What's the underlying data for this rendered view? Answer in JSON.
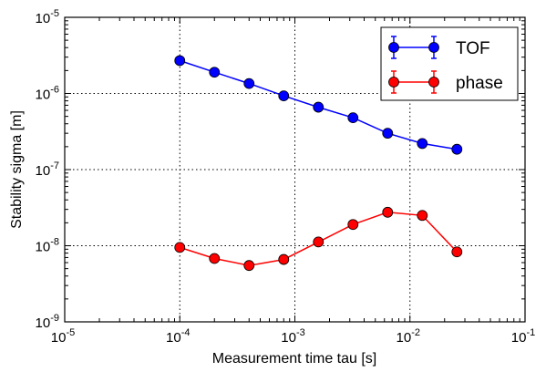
{
  "chart_data": {
    "type": "line",
    "xscale": "log",
    "yscale": "log",
    "xlabel": "Measurement time tau [s]",
    "ylabel": "Stability sigma [m]",
    "xlim": [
      1e-05,
      0.1
    ],
    "ylim": [
      1e-09,
      1e-05
    ],
    "grid": true,
    "legend_position": "top-right",
    "x_ticks": [
      {
        "value": 1e-05,
        "base": "10",
        "exp": "-5"
      },
      {
        "value": 0.0001,
        "base": "10",
        "exp": "-4"
      },
      {
        "value": 0.001,
        "base": "10",
        "exp": "-3"
      },
      {
        "value": 0.01,
        "base": "10",
        "exp": "-2"
      },
      {
        "value": 0.1,
        "base": "10",
        "exp": "-1"
      }
    ],
    "y_ticks": [
      {
        "value": 1e-09,
        "base": "10",
        "exp": "-9"
      },
      {
        "value": 1e-08,
        "base": "10",
        "exp": "-8"
      },
      {
        "value": 1e-07,
        "base": "10",
        "exp": "-7"
      },
      {
        "value": 1e-06,
        "base": "10",
        "exp": "-6"
      },
      {
        "value": 1e-05,
        "base": "10",
        "exp": "-5"
      }
    ],
    "series": [
      {
        "name": "TOF",
        "color": "#0000ff",
        "x": [
          0.0001,
          0.0002,
          0.0004,
          0.0008,
          0.0016,
          0.0032,
          0.0064,
          0.0128,
          0.0256
        ],
        "y": [
          2.7e-06,
          1.9e-06,
          1.35e-06,
          9.3e-07,
          6.6e-07,
          4.8e-07,
          3e-07,
          2.2e-07,
          1.85e-07
        ]
      },
      {
        "name": "phase",
        "color": "#ff0000",
        "x": [
          0.0001,
          0.0002,
          0.0004,
          0.0008,
          0.0016,
          0.0032,
          0.0064,
          0.0128,
          0.0256
        ],
        "y": [
          9.5e-09,
          6.8e-09,
          5.5e-09,
          6.6e-09,
          1.12e-08,
          1.9e-08,
          2.75e-08,
          2.5e-08,
          8.3e-09
        ]
      }
    ]
  }
}
